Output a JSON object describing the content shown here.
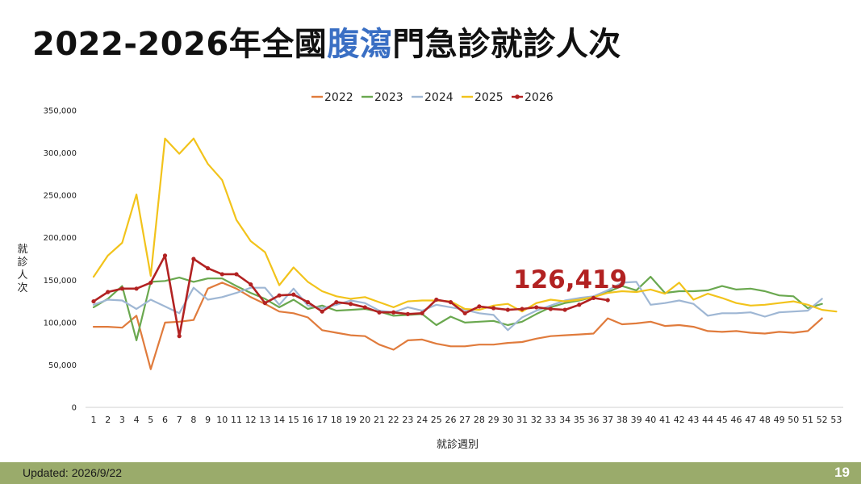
{
  "title": {
    "prefix": "2022-2026年全國",
    "highlight": "腹瀉",
    "suffix": "門急診就診人次"
  },
  "callout": "126,419",
  "footer": {
    "updated": "Updated: 2026/9/22",
    "page": "19"
  },
  "colors": {
    "2022": "#e07b3c",
    "2023": "#6aa84f",
    "2024": "#9fb7d4",
    "2025": "#f2c31b",
    "2026": "#b22222",
    "title_highlight": "#3a6fc4",
    "footer_bg": "#9aab6b"
  },
  "chart_data": {
    "type": "line",
    "xlabel": "就診週別",
    "ylabel": "就診人次",
    "ylim": [
      0,
      350000
    ],
    "yticks": [
      0,
      50000,
      100000,
      150000,
      200000,
      250000,
      300000,
      350000
    ],
    "ytick_labels": [
      "0",
      "50,000",
      "100,000",
      "150,000",
      "200,000",
      "250,000",
      "300,000",
      "350,000"
    ],
    "categories": [
      "1",
      "2",
      "3",
      "4",
      "5",
      "6",
      "7",
      "8",
      "9",
      "10",
      "11",
      "12",
      "13",
      "14",
      "15",
      "16",
      "17",
      "18",
      "19",
      "20",
      "21",
      "22",
      "23",
      "24",
      "25",
      "26",
      "27",
      "28",
      "29",
      "30",
      "31",
      "32",
      "33",
      "34",
      "35",
      "36",
      "37",
      "38",
      "39",
      "40",
      "41",
      "42",
      "43",
      "44",
      "45",
      "46",
      "47",
      "48",
      "49",
      "50",
      "51",
      "52",
      "53"
    ],
    "legend_position": "top",
    "grid": false,
    "series": [
      {
        "name": "2022",
        "values": [
          95000,
          95000,
          94000,
          108000,
          45000,
          100000,
          101000,
          103000,
          140000,
          147000,
          140000,
          130000,
          122000,
          113000,
          111000,
          106000,
          91000,
          88000,
          85000,
          84000,
          74000,
          68000,
          79000,
          80000,
          75000,
          72000,
          72000,
          74000,
          74000,
          76000,
          77000,
          81000,
          84000,
          85000,
          86000,
          87000,
          105000,
          98000,
          99000,
          101000,
          96000,
          97000,
          95000,
          90000,
          89000,
          90000,
          88000,
          87000,
          89000,
          88000,
          90000,
          105000,
          null
        ]
      },
      {
        "name": "2023",
        "values": [
          118000,
          128000,
          143000,
          79000,
          148000,
          149000,
          153000,
          148000,
          152000,
          152000,
          143000,
          135000,
          128000,
          118000,
          127000,
          116000,
          120000,
          114000,
          115000,
          116000,
          113000,
          108000,
          109000,
          110000,
          97000,
          107000,
          100000,
          101000,
          102000,
          97000,
          101000,
          110000,
          118000,
          123000,
          126000,
          130000,
          136000,
          143000,
          138000,
          154000,
          135000,
          137000,
          137000,
          138000,
          143000,
          139000,
          140000,
          137000,
          132000,
          131000,
          117000,
          122000,
          null
        ]
      },
      {
        "name": "2024",
        "values": [
          121000,
          127000,
          126000,
          116000,
          127000,
          119000,
          111000,
          141000,
          127000,
          130000,
          135000,
          141000,
          141000,
          121000,
          140000,
          120000,
          117000,
          121000,
          126000,
          123000,
          114000,
          112000,
          118000,
          114000,
          121000,
          118000,
          115000,
          111000,
          109000,
          91000,
          106000,
          114000,
          120000,
          126000,
          129000,
          131000,
          138000,
          147000,
          148000,
          121000,
          123000,
          126000,
          122000,
          108000,
          111000,
          111000,
          112000,
          107000,
          112000,
          113000,
          114000,
          128000,
          null
        ]
      },
      {
        "name": "2025",
        "values": [
          154000,
          179000,
          194000,
          251000,
          155000,
          317000,
          299000,
          317000,
          287000,
          268000,
          221000,
          196000,
          183000,
          144000,
          165000,
          148000,
          137000,
          131000,
          128000,
          130000,
          124000,
          118000,
          125000,
          126000,
          126000,
          125000,
          116000,
          115000,
          120000,
          122000,
          113000,
          123000,
          127000,
          125000,
          127000,
          130000,
          135000,
          137000,
          136000,
          139000,
          134000,
          147000,
          127000,
          134000,
          129000,
          123000,
          120000,
          121000,
          123000,
          125000,
          121000,
          115000,
          113000
        ]
      },
      {
        "name": "2026",
        "values": [
          125000,
          136000,
          140000,
          140000,
          147000,
          179000,
          84000,
          175000,
          164000,
          157000,
          157000,
          145000,
          123000,
          132000,
          133000,
          124000,
          113000,
          124000,
          122000,
          118000,
          112000,
          112000,
          110000,
          111000,
          127000,
          124000,
          111000,
          119000,
          117000,
          115000,
          116000,
          118000,
          116000,
          115000,
          121000,
          129000,
          126419,
          null,
          null,
          null,
          null,
          null,
          null,
          null,
          null,
          null,
          null,
          null,
          null,
          null,
          null,
          null,
          null
        ]
      }
    ]
  }
}
